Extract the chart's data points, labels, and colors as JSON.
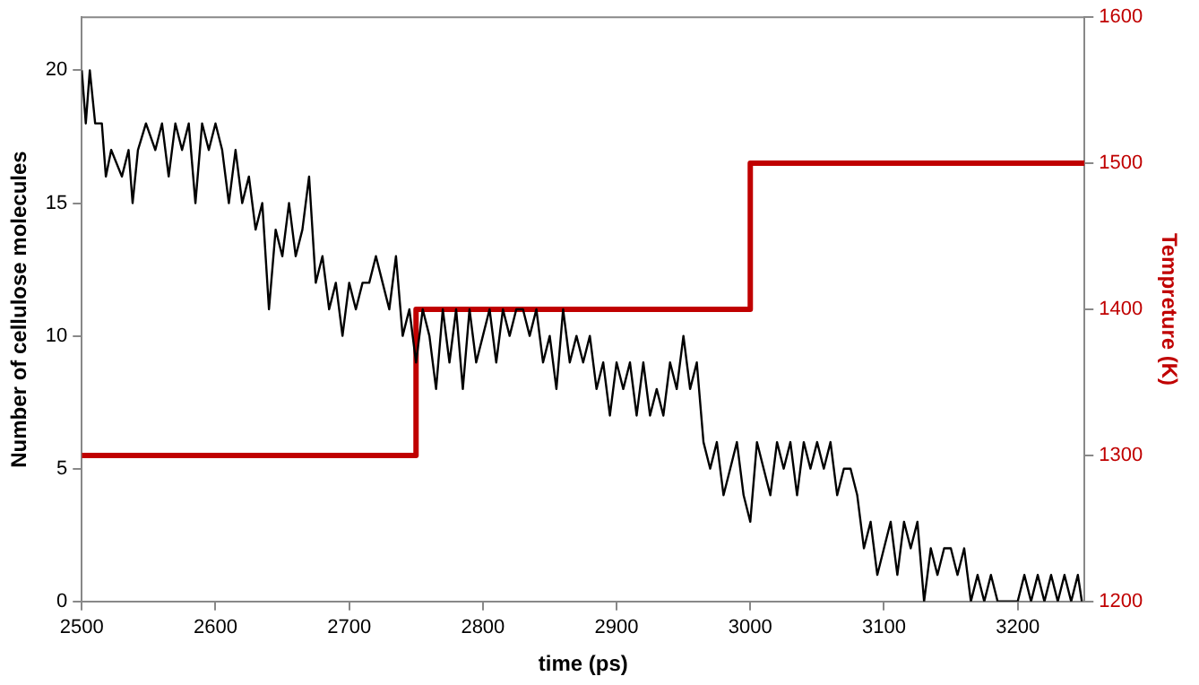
{
  "chart_data": {
    "type": "line",
    "xlabel": "time (ps)",
    "ylabel": "Number of cellulose molecules",
    "y2label": "Tempreture (K)",
    "xlim": [
      2500,
      3250
    ],
    "xticks": [
      2500,
      2600,
      2700,
      2800,
      2900,
      3000,
      3100,
      3200
    ],
    "ylim": [
      0,
      22
    ],
    "yticks": [
      0,
      5,
      10,
      15,
      20
    ],
    "y2lim": [
      1200,
      1600
    ],
    "y2ticks": [
      1200,
      1300,
      1400,
      1500,
      1600
    ],
    "grid": false,
    "legend": false,
    "marker": "none",
    "series": [
      {
        "color": "#000000",
        "x": [
          2500,
          2503,
          2506,
          2510,
          2515,
          2518,
          2522,
          2530,
          2535,
          2538,
          2542,
          2548,
          2555,
          2560,
          2565,
          2570,
          2575,
          2580,
          2585,
          2590,
          2595,
          2600,
          2605,
          2610,
          2615,
          2620,
          2625,
          2630,
          2635,
          2640,
          2645,
          2650,
          2655,
          2660,
          2665,
          2670,
          2675,
          2680,
          2685,
          2690,
          2695,
          2700,
          2705,
          2710,
          2715,
          2720,
          2725,
          2730,
          2735,
          2740,
          2745,
          2750,
          2755,
          2760,
          2765,
          2770,
          2775,
          2780,
          2785,
          2790,
          2795,
          2800,
          2805,
          2810,
          2815,
          2820,
          2825,
          2830,
          2835,
          2840,
          2845,
          2850,
          2855,
          2860,
          2865,
          2870,
          2875,
          2880,
          2885,
          2890,
          2895,
          2900,
          2905,
          2910,
          2915,
          2920,
          2925,
          2930,
          2935,
          2940,
          2945,
          2950,
          2955,
          2960,
          2965,
          2970,
          2975,
          2980,
          2985,
          2990,
          2995,
          3000,
          3005,
          3010,
          3015,
          3020,
          3025,
          3030,
          3035,
          3040,
          3045,
          3050,
          3055,
          3060,
          3065,
          3070,
          3075,
          3080,
          3085,
          3090,
          3095,
          3100,
          3105,
          3110,
          3115,
          3120,
          3125,
          3130,
          3135,
          3140,
          3145,
          3150,
          3155,
          3160,
          3165,
          3170,
          3175,
          3180,
          3185,
          3190,
          3195,
          3200,
          3205,
          3210,
          3215,
          3220,
          3225,
          3230,
          3235,
          3240,
          3245,
          3248
        ],
        "values": [
          20,
          18,
          20,
          18,
          18,
          16,
          17,
          16,
          17,
          15,
          17,
          18,
          17,
          18,
          16,
          18,
          17,
          18,
          15,
          18,
          17,
          18,
          17,
          15,
          17,
          15,
          16,
          14,
          15,
          11,
          14,
          13,
          15,
          13,
          14,
          16,
          12,
          13,
          11,
          12,
          10,
          12,
          11,
          12,
          12,
          13,
          12,
          11,
          13,
          10,
          11,
          9,
          11,
          10,
          8,
          11,
          9,
          11,
          8,
          11,
          9,
          10,
          11,
          9,
          11,
          10,
          11,
          11,
          10,
          11,
          9,
          10,
          8,
          11,
          9,
          10,
          9,
          10,
          8,
          9,
          7,
          9,
          8,
          9,
          7,
          9,
          7,
          8,
          7,
          9,
          8,
          10,
          8,
          9,
          6,
          5,
          6,
          4,
          5,
          6,
          4,
          3,
          6,
          5,
          4,
          6,
          5,
          6,
          4,
          6,
          5,
          6,
          5,
          6,
          4,
          5,
          5,
          4,
          2,
          3,
          1,
          2,
          3,
          1,
          3,
          2,
          3,
          0,
          2,
          1,
          2,
          2,
          1,
          2,
          0,
          1,
          0,
          1,
          0,
          0,
          0,
          0,
          1,
          0,
          1,
          0,
          1,
          0,
          1,
          0,
          1,
          0
        ]
      },
      {
        "color": "#c00000",
        "axis": "y2",
        "x": [
          2500,
          2750,
          2750,
          3000,
          3000,
          3250
        ],
        "values": [
          1300,
          1300,
          1400,
          1400,
          1500,
          1500
        ]
      }
    ]
  }
}
